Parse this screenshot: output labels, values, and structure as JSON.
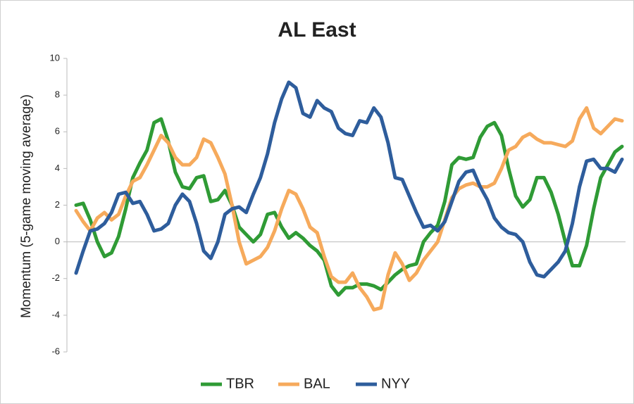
{
  "chart_data": {
    "type": "line",
    "title": "AL East",
    "y_label": "Momentum (5-game moving average)",
    "categories": [
      null,
      null,
      null,
      null,
      null,
      null,
      null,
      null,
      null,
      null,
      null,
      null,
      null,
      null,
      null,
      null,
      null,
      null,
      null,
      null,
      null,
      null,
      null,
      null,
      null,
      null,
      null,
      null,
      null,
      null,
      null,
      null,
      null,
      null,
      null,
      null,
      null,
      null,
      null,
      null,
      null,
      null,
      null,
      null,
      null,
      null,
      null,
      null,
      null,
      null,
      null,
      null,
      null,
      null,
      null,
      null,
      null,
      null,
      null,
      null,
      null,
      null,
      null,
      null,
      null,
      null,
      null,
      null,
      null,
      null,
      null,
      null,
      null,
      null,
      null,
      null,
      null,
      null
    ],
    "series": [
      {
        "name": "TBR",
        "color": "#2f9b35",
        "values": [
          2.0,
          2.1,
          1.2,
          0.0,
          -0.8,
          -0.6,
          0.3,
          1.8,
          3.5,
          4.3,
          5.0,
          6.5,
          6.7,
          5.5,
          3.8,
          3.0,
          2.9,
          3.5,
          3.6,
          2.2,
          2.3,
          2.8,
          2.0,
          0.8,
          0.4,
          0.0,
          0.4,
          1.5,
          1.6,
          0.8,
          0.2,
          0.5,
          0.2,
          -0.2,
          -0.5,
          -1.0,
          -2.4,
          -2.9,
          -2.5,
          -2.5,
          -2.3,
          -2.3,
          -2.4,
          -2.6,
          -2.2,
          -1.8,
          -1.5,
          -1.3,
          -1.2,
          0.0,
          0.5,
          0.9,
          2.2,
          4.2,
          4.6,
          4.5,
          4.6,
          5.7,
          6.3,
          6.5,
          5.8,
          4.0,
          2.5,
          1.9,
          2.3,
          3.5,
          3.5,
          2.7,
          1.5,
          0.0,
          -1.3,
          -1.3,
          -0.2,
          1.8,
          3.5,
          4.2,
          4.9,
          5.2
        ]
      },
      {
        "name": "BAL",
        "color": "#f6aa5c",
        "values": [
          1.7,
          1.1,
          0.6,
          1.3,
          1.6,
          1.2,
          1.5,
          2.5,
          3.3,
          3.5,
          4.2,
          5.0,
          5.8,
          5.4,
          4.6,
          4.2,
          4.2,
          4.6,
          5.6,
          5.4,
          4.6,
          3.7,
          2.0,
          0.0,
          -1.2,
          -1.0,
          -0.8,
          -0.3,
          0.6,
          1.8,
          2.8,
          2.6,
          1.8,
          0.8,
          0.5,
          -0.8,
          -1.9,
          -2.2,
          -2.2,
          -1.7,
          -2.5,
          -3.0,
          -3.7,
          -3.6,
          -1.8,
          -0.6,
          -1.2,
          -2.1,
          -1.7,
          -1.0,
          -0.5,
          0.0,
          1.2,
          2.4,
          2.9,
          3.1,
          3.2,
          3.0,
          3.0,
          3.2,
          4.0,
          5.0,
          5.2,
          5.7,
          5.9,
          5.6,
          5.4,
          5.4,
          5.3,
          5.2,
          5.5,
          6.7,
          7.3,
          6.2,
          5.9,
          6.3,
          6.7,
          6.6
        ]
      },
      {
        "name": "NYY",
        "color": "#2e5d9c",
        "values": [
          -1.7,
          -0.5,
          0.6,
          0.7,
          1.0,
          1.6,
          2.6,
          2.7,
          2.1,
          2.2,
          1.5,
          0.6,
          0.7,
          1.0,
          2.0,
          2.6,
          2.2,
          1.0,
          -0.5,
          -0.9,
          0.0,
          1.5,
          1.8,
          1.9,
          1.6,
          2.6,
          3.5,
          4.8,
          6.5,
          7.8,
          8.7,
          8.4,
          7.0,
          6.8,
          7.7,
          7.3,
          7.1,
          6.2,
          5.9,
          5.8,
          6.6,
          6.5,
          7.3,
          6.8,
          5.4,
          3.5,
          3.4,
          2.5,
          1.6,
          0.8,
          0.9,
          0.6,
          1.1,
          2.2,
          3.3,
          3.8,
          3.9,
          3.0,
          2.3,
          1.3,
          0.8,
          0.5,
          0.4,
          0.0,
          -1.1,
          -1.8,
          -1.9,
          -1.5,
          -1.1,
          -0.5,
          1.0,
          3.0,
          4.4,
          4.5,
          4.0,
          4.0,
          3.8,
          4.5
        ]
      }
    ],
    "ylim": [
      -6,
      10
    ],
    "yticks": [
      -6,
      -4,
      -2,
      0,
      2,
      4,
      6,
      8,
      10
    ],
    "legend": "bottom"
  }
}
